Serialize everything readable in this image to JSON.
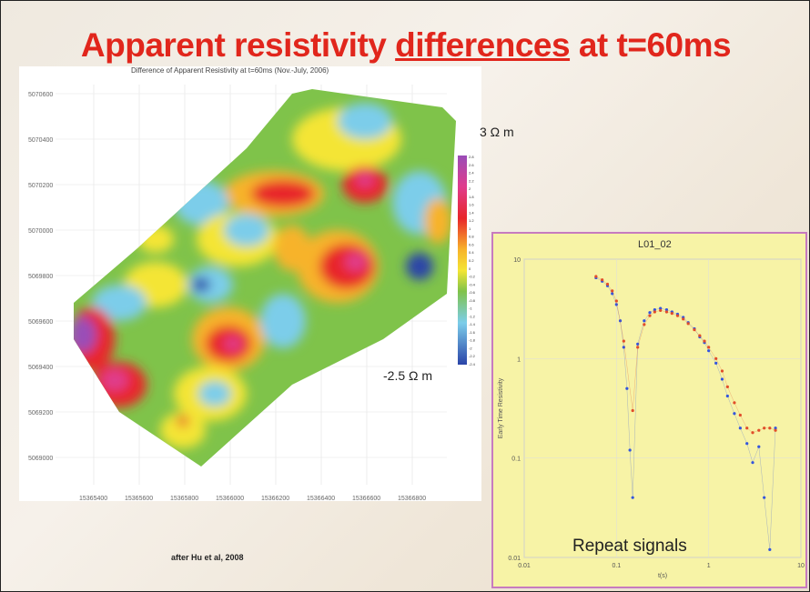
{
  "title": {
    "part1": "Apparent resistivity ",
    "part2": "differences",
    "part3": " at t=60ms"
  },
  "map": {
    "title": "Difference of Apparent Resistivity at t=60ms (Nov.-July, 2006)",
    "y_ticks": [
      "5070600",
      "5070400",
      "5070200",
      "5070000",
      "5069800",
      "5069600",
      "5069400",
      "5069200",
      "5069000"
    ],
    "x_ticks": [
      "15365400",
      "15365600",
      "15365800",
      "15366000",
      "15366200",
      "15366400",
      "15366600",
      "15366800"
    ],
    "colorbar_ticks": [
      "2.8",
      "2.6",
      "2.4",
      "2.2",
      "2",
      "1.8",
      "1.6",
      "1.4",
      "1.2",
      "1",
      "0.8",
      "0.6",
      "0.4",
      "0.2",
      "0",
      "-0.2",
      "-0.4",
      "-0.6",
      "-0.8",
      "-1",
      "-1.2",
      "-1.4",
      "-1.6",
      "-1.8",
      "-2",
      "-2.2",
      "-2.4"
    ],
    "max_label": "3 Ω m",
    "min_label": "-2.5 Ω m"
  },
  "credit": "after Hu et al, 2008",
  "chart_data": {
    "type": "scatter",
    "title": "L01_02",
    "xlabel": "t(s)",
    "ylabel": "Early Time Resistivity",
    "xscale": "log",
    "yscale": "log",
    "xlim": [
      0.01,
      10
    ],
    "ylim": [
      0.01,
      10
    ],
    "x_ticks": [
      "0.01",
      "0.1",
      "1",
      "10"
    ],
    "y_ticks": [
      "10",
      "1",
      "0.1",
      "0.01"
    ],
    "annotation": "Repeat signals",
    "series": [
      {
        "color": "#3355dd",
        "x": [
          0.06,
          0.07,
          0.08,
          0.09,
          0.1,
          0.11,
          0.12,
          0.13,
          0.14,
          0.15,
          0.17,
          0.2,
          0.23,
          0.26,
          0.3,
          0.35,
          0.4,
          0.46,
          0.53,
          0.6,
          0.7,
          0.8,
          0.9,
          1.0,
          1.2,
          1.4,
          1.6,
          1.9,
          2.2,
          2.6,
          3.0,
          3.5,
          4.0,
          4.6,
          5.3
        ],
        "y": [
          6.5,
          6.0,
          5.4,
          4.5,
          3.5,
          2.4,
          1.3,
          0.5,
          0.12,
          0.04,
          1.4,
          2.4,
          2.9,
          3.1,
          3.2,
          3.1,
          2.95,
          2.8,
          2.6,
          2.3,
          2.0,
          1.65,
          1.45,
          1.2,
          0.9,
          0.62,
          0.42,
          0.28,
          0.2,
          0.14,
          0.09,
          0.13,
          0.04,
          0.012,
          0.2
        ]
      },
      {
        "color": "#e14d2a",
        "x": [
          0.06,
          0.07,
          0.08,
          0.09,
          0.1,
          0.12,
          0.15,
          0.17,
          0.2,
          0.23,
          0.26,
          0.3,
          0.35,
          0.4,
          0.46,
          0.53,
          0.6,
          0.7,
          0.8,
          0.9,
          1.0,
          1.2,
          1.4,
          1.6,
          1.9,
          2.2,
          2.6,
          3.0,
          3.5,
          4.0,
          4.6,
          5.3
        ],
        "y": [
          6.7,
          6.2,
          5.6,
          4.8,
          3.8,
          1.5,
          0.3,
          1.3,
          2.2,
          2.7,
          2.95,
          3.05,
          2.95,
          2.85,
          2.7,
          2.5,
          2.25,
          1.95,
          1.7,
          1.5,
          1.3,
          1.0,
          0.75,
          0.52,
          0.36,
          0.27,
          0.2,
          0.18,
          0.19,
          0.2,
          0.2,
          0.19
        ]
      }
    ]
  }
}
